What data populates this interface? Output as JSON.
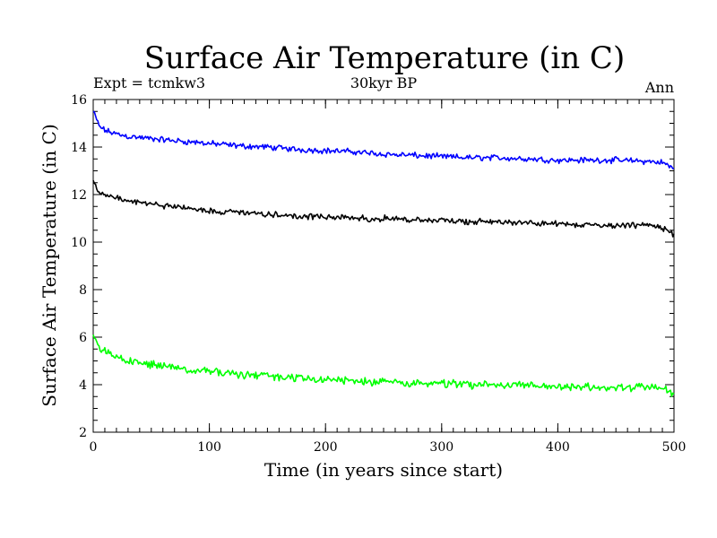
{
  "chart_data": {
    "type": "line",
    "title": "Surface Air Temperature (in C)",
    "subtitle_left": "Expt = tcmkw3",
    "subtitle_center": "30kyr BP",
    "subtitle_right": "Ann",
    "xlabel": "Time (in years since start)",
    "ylabel": "Surface Air Temperature (in C)",
    "xlim": [
      0,
      500
    ],
    "ylim": [
      2,
      16
    ],
    "xticks": [
      0,
      100,
      200,
      300,
      400,
      500
    ],
    "yticks": [
      2,
      4,
      6,
      8,
      10,
      12,
      14,
      16
    ],
    "x_minor_step": 10,
    "y_minor_step": 0.5,
    "series": [
      {
        "name": "blue",
        "color": "#0000ff",
        "x": [
          0,
          5,
          10,
          20,
          30,
          50,
          75,
          100,
          125,
          150,
          175,
          200,
          225,
          250,
          275,
          300,
          325,
          350,
          375,
          400,
          425,
          450,
          475,
          490,
          500
        ],
        "values": [
          15.5,
          14.9,
          14.7,
          14.55,
          14.45,
          14.35,
          14.25,
          14.15,
          14.05,
          14.0,
          13.9,
          13.85,
          13.8,
          13.7,
          13.65,
          13.6,
          13.55,
          13.55,
          13.5,
          13.45,
          13.45,
          13.45,
          13.4,
          13.35,
          13.1
        ],
        "noise": 0.11
      },
      {
        "name": "black",
        "color": "#000000",
        "x": [
          0,
          5,
          10,
          20,
          30,
          50,
          75,
          100,
          125,
          150,
          175,
          200,
          225,
          250,
          275,
          300,
          325,
          350,
          375,
          400,
          425,
          450,
          475,
          490,
          500
        ],
        "values": [
          12.6,
          12.1,
          11.95,
          11.85,
          11.7,
          11.6,
          11.45,
          11.3,
          11.25,
          11.15,
          11.1,
          11.05,
          11.0,
          11.0,
          10.95,
          10.9,
          10.85,
          10.85,
          10.8,
          10.75,
          10.75,
          10.7,
          10.7,
          10.6,
          10.35
        ],
        "noise": 0.11
      },
      {
        "name": "green",
        "color": "#00ff00",
        "x": [
          0,
          5,
          10,
          20,
          30,
          50,
          75,
          100,
          125,
          150,
          175,
          200,
          225,
          250,
          275,
          300,
          325,
          350,
          375,
          400,
          425,
          450,
          475,
          490,
          500
        ],
        "values": [
          6.1,
          5.6,
          5.4,
          5.15,
          5.0,
          4.85,
          4.7,
          4.55,
          4.45,
          4.35,
          4.28,
          4.22,
          4.15,
          4.1,
          4.08,
          4.05,
          4.0,
          4.0,
          3.95,
          3.92,
          3.9,
          3.88,
          3.88,
          3.85,
          3.6
        ],
        "noise": 0.15
      }
    ]
  }
}
